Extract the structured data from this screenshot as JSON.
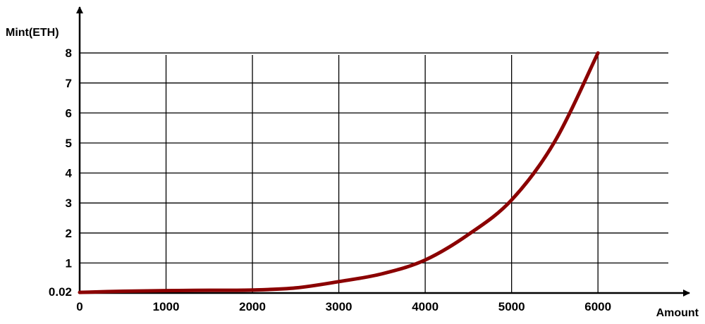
{
  "chart_data": {
    "type": "line",
    "xlabel": "Amount",
    "ylabel": "Mint(ETH)",
    "x_ticks": [
      0,
      1000,
      2000,
      3000,
      4000,
      5000,
      6000
    ],
    "x_tick_labels": [
      "0",
      "1000",
      "2000",
      "3000",
      "4000",
      "5000",
      "6000"
    ],
    "y_ticks": [
      0.02,
      1,
      2,
      3,
      4,
      5,
      6,
      7,
      8
    ],
    "y_tick_labels": [
      "0.02",
      "1",
      "2",
      "3",
      "4",
      "5",
      "6",
      "7",
      "8"
    ],
    "xlim": [
      0,
      6800
    ],
    "ylim": [
      0,
      8
    ],
    "grid": true,
    "series": [
      {
        "color": "#8b0000",
        "x": [
          0,
          500,
          1000,
          1500,
          2000,
          2500,
          3000,
          3500,
          4000,
          4500,
          5000,
          5500,
          6000
        ],
        "y": [
          0.02,
          0.06,
          0.08,
          0.09,
          0.1,
          0.17,
          0.38,
          0.64,
          1.1,
          1.95,
          3.1,
          5.05,
          8.0
        ]
      }
    ]
  }
}
